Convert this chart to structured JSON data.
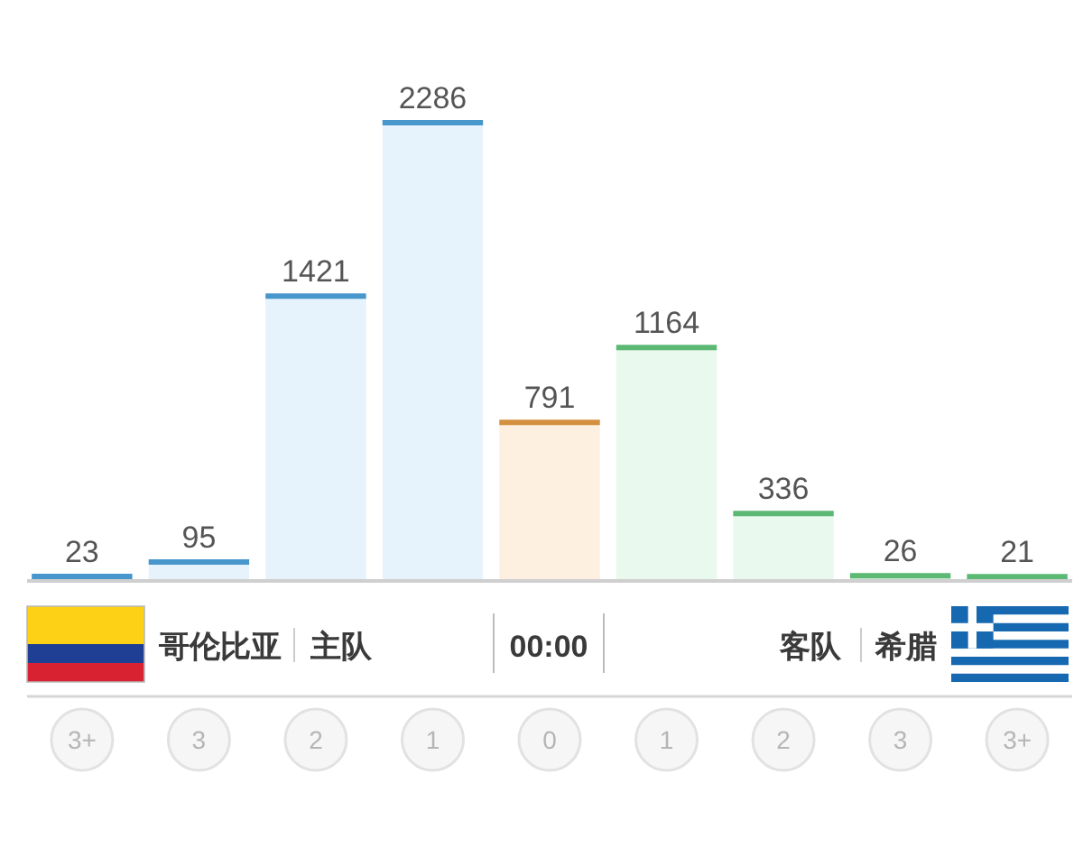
{
  "chart_data": {
    "type": "bar",
    "categories": [
      "3+",
      "3",
      "2",
      "1",
      "0",
      "1",
      "2",
      "3",
      "3+"
    ],
    "values": [
      23,
      95,
      1421,
      2286,
      791,
      1164,
      336,
      26,
      21
    ],
    "colors": [
      "#e6f3fc",
      "#e6f3fc",
      "#e6f3fc",
      "#e6f3fc",
      "#fdf0e1",
      "#eaf9ee",
      "#eaf9ee",
      "#eaf9ee",
      "#eaf9ee"
    ],
    "data_labels": true,
    "annotations": [
      "哥伦比亚",
      "主队",
      "00:00",
      "客队",
      "希腊"
    ]
  }
}
